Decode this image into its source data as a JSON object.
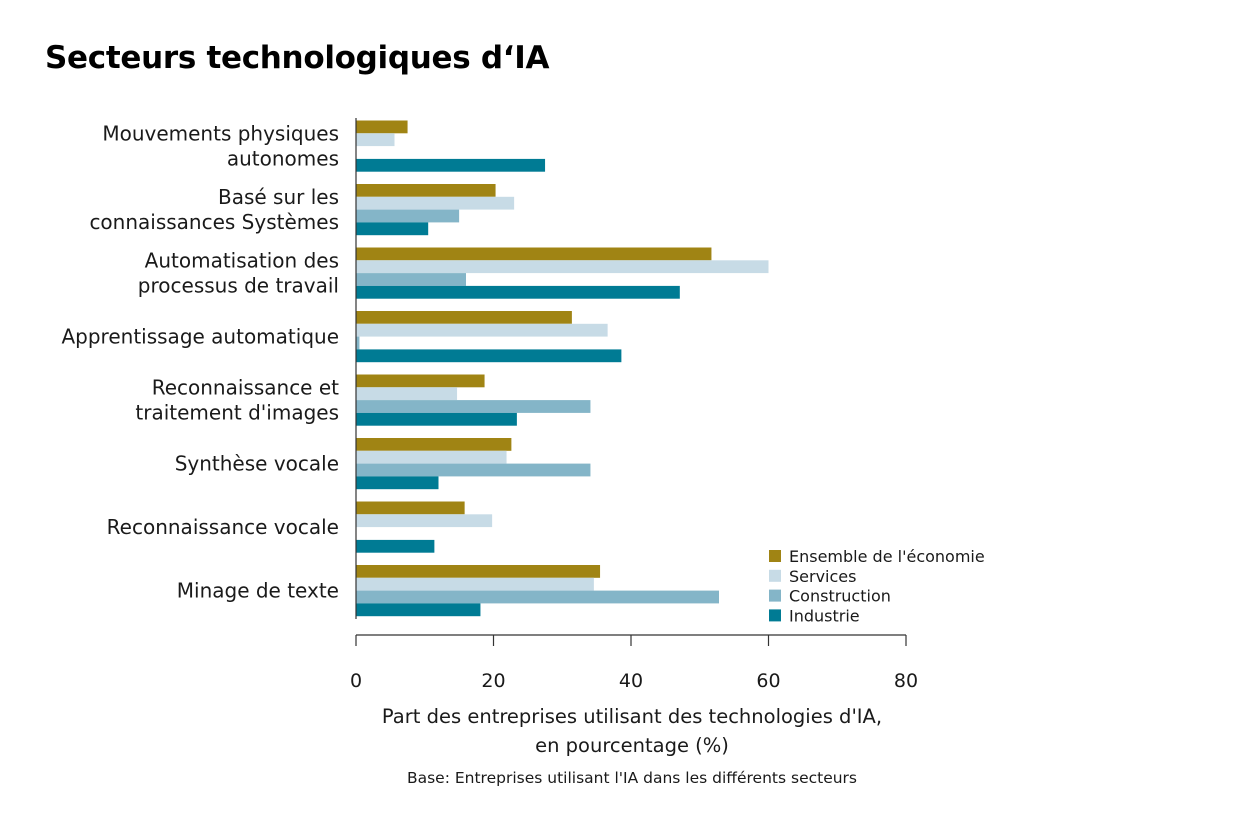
{
  "chart_data": {
    "type": "bar",
    "orientation": "horizontal",
    "title": "Secteurs technologiques d‘IA",
    "categories": [
      [
        "Mouvements physiques",
        "autonomes"
      ],
      [
        "Basé sur les",
        "connaissances Systèmes"
      ],
      [
        "Automatisation des",
        "processus de travail"
      ],
      [
        "Apprentissage automatique"
      ],
      [
        "Reconnaissance et",
        "traitement d'images"
      ],
      [
        "Synthèse vocale"
      ],
      [
        "Reconnaissance vocale"
      ],
      [
        "Minage de texte"
      ]
    ],
    "series": [
      {
        "name": "Ensemble de l'économie",
        "color": "#a08414",
        "values": [
          7.5,
          20.3,
          51.7,
          31.4,
          18.7,
          22.6,
          15.8,
          35.5
        ]
      },
      {
        "name": "Services",
        "color": "#c7dbe6",
        "values": [
          5.6,
          23.0,
          60.0,
          36.6,
          14.7,
          21.9,
          19.8,
          34.6
        ]
      },
      {
        "name": "Construction",
        "color": "#84b5c8",
        "values": [
          0,
          15.0,
          16.0,
          0.5,
          34.1,
          34.1,
          0,
          52.8
        ]
      },
      {
        "name": "Industrie",
        "color": "#007b94",
        "values": [
          27.5,
          10.5,
          47.1,
          38.6,
          23.4,
          12.0,
          11.4,
          18.1
        ]
      }
    ],
    "xticks": [
      "0",
      "20",
      "40",
      "60",
      "80"
    ],
    "xlim": [
      0,
      80
    ],
    "xlabel": [
      "Part des entreprises utilisant des technologies d'IA,",
      "en pourcentage (%)"
    ],
    "note": "Base: Entreprises utilisant l'IA dans les différents secteurs",
    "grid": false,
    "legend_position": "bottom-right"
  }
}
